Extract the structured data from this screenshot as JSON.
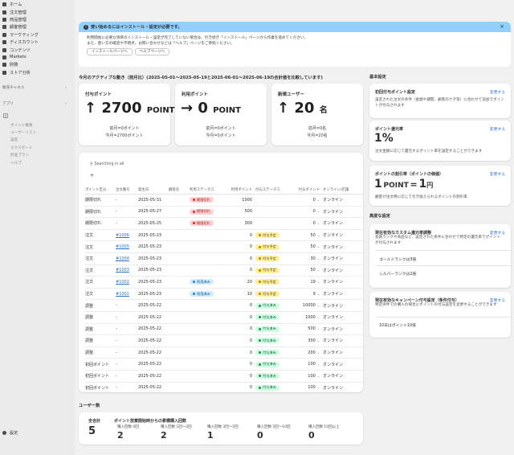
{
  "sidebar": {
    "items": [
      {
        "label": "ホーム",
        "icon": "home-icon"
      },
      {
        "label": "注文管理",
        "icon": "orders-icon"
      },
      {
        "label": "商品管理",
        "icon": "tag-icon"
      },
      {
        "label": "顧客管理",
        "icon": "person-icon"
      },
      {
        "label": "マーケティング",
        "icon": "target-icon"
      },
      {
        "label": "ディスカウント",
        "icon": "discount-icon"
      },
      {
        "label": "コンテンツ",
        "icon": "content-icon"
      },
      {
        "label": "Markets",
        "icon": "globe-icon"
      },
      {
        "label": "財務",
        "icon": "bank-icon"
      },
      {
        "label": "ストア分析",
        "icon": "chart-icon"
      }
    ],
    "sales_channels": "販売チャネル",
    "apps": "アプリ",
    "app_subitems": [
      "ポイント概要",
      "ユーザーリスト",
      "設定",
      "エクスポート",
      "料金プラン",
      "ヘルプ"
    ],
    "settings": "設定"
  },
  "banner": {
    "title": "使い始めるにはインストール・設定が必要です。",
    "line1": "利用開始に必要な項目のインストール・設定が完了していない場合は、引き続き「インストール」ページから作業を進めてください。",
    "line2": "また、使い方の確認や不明点、お問い合わせなどは「ヘルプ」ページをご参照ください。",
    "btn_install": "インストールページへ",
    "btn_help": "ヘルプページへ",
    "close": "×"
  },
  "period": "今月のアクティブな動き（前月比）(2025-05-01〜2025-05-19と2025-06-01〜2025-06-19の合計値を比較しています)",
  "kpis": [
    {
      "title": "付与ポイント",
      "arrow": "↑",
      "value": "2700",
      "unit": "POINT",
      "prev": "前月=0ポイント",
      "curr": "今月=2700ポイント"
    },
    {
      "title": "利用ポイント",
      "arrow": "→",
      "value": "0",
      "unit": "POINT",
      "prev": "前月=0ポイント",
      "curr": "今月=0ポイント"
    },
    {
      "title": "新規ユーザー",
      "arrow": "↑",
      "value": "20",
      "unit": "名",
      "prev": "前月=0名",
      "curr": "今月=20名"
    }
  ],
  "table": {
    "search_placeholder": "Searching in all",
    "add": "+",
    "headers": [
      "ポイント区分",
      "注文番号",
      "発生日",
      "顧客名",
      "利用ステータス",
      "利用ポイント",
      "付与ステータス",
      "付与ポイント",
      "オンライン/店舗"
    ],
    "rows": [
      [
        "期限切れ",
        "-",
        "2025-05-31",
        "",
        "red:期限切れ",
        "1000",
        "",
        "0",
        "オンライン"
      ],
      [
        "期限切れ",
        "-",
        "2025-05-27",
        "",
        "red:期限切れ",
        "500",
        "",
        "0",
        "オンライン"
      ],
      [
        "期限切れ",
        "-",
        "2025-05-25",
        "",
        "red:期限切れ",
        "300",
        "",
        "0",
        "オンライン"
      ],
      [
        "注文",
        "#1006",
        "2025-05-23",
        "",
        "",
        "0",
        "yel:付与予定",
        "50",
        "オンライン"
      ],
      [
        "注文",
        "#1005",
        "2025-05-23",
        "",
        "",
        "0",
        "yel:付与予定",
        "50",
        "オンライン"
      ],
      [
        "注文",
        "#1004",
        "2025-05-23",
        "",
        "",
        "0",
        "yel:付与予定",
        "30",
        "オンライン"
      ],
      [
        "注文",
        "#1003",
        "2025-05-23",
        "",
        "",
        "0",
        "yel:付与予定",
        "50",
        "オンライン"
      ],
      [
        "注文",
        "#1002",
        "2025-05-23",
        "",
        "blue:利用済み",
        "20",
        "yel:付与予定",
        "19",
        "オンライン"
      ],
      [
        "注文",
        "#1001",
        "2025-05-23",
        "",
        "blue:利用済み",
        "10",
        "yel:付与予定",
        "9",
        "オンライン"
      ],
      [
        "調整",
        "-",
        "2025-05-22",
        "",
        "",
        "0",
        "grn:付与済み",
        "10000",
        "オンライン"
      ],
      [
        "調整",
        "-",
        "2025-05-22",
        "",
        "",
        "0",
        "grn:付与済み",
        "1000",
        "オンライン"
      ],
      [
        "調整",
        "-",
        "2025-05-22",
        "",
        "",
        "0",
        "grn:付与済み",
        "500",
        "オンライン"
      ],
      [
        "調整",
        "-",
        "2025-05-22",
        "",
        "",
        "0",
        "grn:付与済み",
        "300",
        "オンライン"
      ],
      [
        "調整",
        "-",
        "2025-05-22",
        "",
        "",
        "0",
        "grn:付与済み",
        "200",
        "オンライン"
      ],
      [
        "初回ポイント",
        "-",
        "2025-05-22",
        "",
        "",
        "0",
        "grn:付与済み",
        "100",
        "オンライン"
      ],
      [
        "初回ポイント",
        "-",
        "2025-05-22",
        "",
        "",
        "0",
        "grn:付与済み",
        "100",
        "オンライン"
      ],
      [
        "初回ポイント",
        "-",
        "2025-05-22",
        "",
        "",
        "0",
        "grn:付与済み",
        "100",
        "オンライン"
      ]
    ]
  },
  "users": {
    "section": "ユーザー数",
    "total_label": "全合計",
    "total": "5",
    "heading": "ポイント放棄開始時からの累積購入回数",
    "buckets": [
      {
        "label": "購入回数 0回",
        "value": "2"
      },
      {
        "label": "購入回数 1回〜3回",
        "value": "2"
      },
      {
        "label": "購入回数 3回〜5回",
        "value": "1"
      },
      {
        "label": "購入回数 5回〜10回",
        "value": "0"
      },
      {
        "label": "購入回数 10回以上",
        "value": "0"
      }
    ]
  },
  "basic": {
    "section": "基本設定",
    "first": {
      "title": "初回付与ポイント設定",
      "link": "変更する",
      "desc": "設定された注文の条件（金額や期間、顧客のケグ等）に合わせて追加でポイントが付与されます"
    },
    "rate": {
      "title": "ポイント還元率",
      "link": "変更する",
      "value": "1%",
      "desc": "注文金額に応じて還元するポイント率を設定することができます"
    },
    "conv": {
      "title": "ポイントの割引率（ポイントの価値）",
      "link": "変更する",
      "left": "1",
      "unit": "POINT",
      "eq": "=",
      "right": "1",
      "yen": "円",
      "desc": "顧客が注文時に応じて引き換えられるポイントの割引率"
    }
  },
  "advanced": {
    "section": "高度な設定",
    "rank": {
      "title": "現在有効なカスタム還元率調整",
      "link": "変更する",
      "desc": "会員ランクや商品など、設定された条件に合わせて特定の還元率でポイントが付与されます",
      "items": [
        "ゴールドランクは3倍",
        "シルバーランクは2倍"
      ]
    },
    "campaign": {
      "title": "現在有効なキャンペーン付与設定（条件付与）",
      "link": "変更する",
      "desc": "特定条件での購入の場合にポイントの付与設定を変更することができます",
      "items": [
        "10日はポイント10倍"
      ]
    }
  }
}
